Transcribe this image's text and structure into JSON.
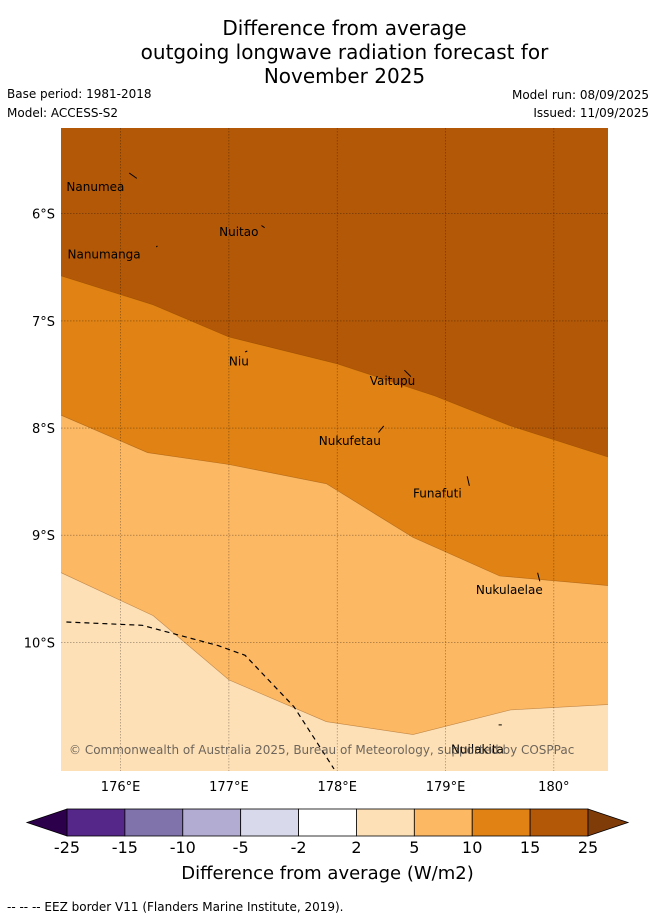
{
  "title": {
    "line1": "Difference from average",
    "line2": "outgoing longwave radiation forecast for",
    "line3": "November 2025"
  },
  "meta": {
    "base_period": "Base period: 1981-2018",
    "model": "Model: ACCESS-S2",
    "model_run": "Model run: 08/09/2025",
    "issued": "Issued: 11/09/2025"
  },
  "map": {
    "type": "filled-contour",
    "xlim": [
      175.45,
      180.5
    ],
    "ylim": [
      -11.2,
      -5.2
    ],
    "x_ticks": [
      {
        "value": 176,
        "label": "176°E"
      },
      {
        "value": 177,
        "label": "177°E"
      },
      {
        "value": 178,
        "label": "178°E"
      },
      {
        "value": 179,
        "label": "179°E"
      },
      {
        "value": 180,
        "label": "180°"
      }
    ],
    "y_ticks": [
      {
        "value": -6,
        "label": "6°S"
      },
      {
        "value": -7,
        "label": "7°S"
      },
      {
        "value": -8,
        "label": "8°S"
      },
      {
        "value": -9,
        "label": "9°S"
      },
      {
        "value": -10,
        "label": "10°S"
      }
    ],
    "grid": true,
    "bands": [
      {
        "range": "15 to 25",
        "color": "#b35806"
      },
      {
        "range": "10 to 15",
        "color": "#e08214"
      },
      {
        "range": "5 to 10",
        "color": "#fdb863"
      },
      {
        "range": "2 to 5",
        "color": "#fee0b6"
      }
    ],
    "boundaries": [
      {
        "between": "25/15",
        "points": [
          [
            175.45,
            -6.58
          ],
          [
            176.3,
            -6.85
          ],
          [
            177.0,
            -7.15
          ],
          [
            178.0,
            -7.4
          ],
          [
            178.9,
            -7.7
          ],
          [
            179.6,
            -7.98
          ],
          [
            180.5,
            -8.27
          ]
        ]
      },
      {
        "between": "15/10",
        "points": [
          [
            175.45,
            -7.88
          ],
          [
            176.25,
            -8.23
          ],
          [
            177.0,
            -8.34
          ],
          [
            177.9,
            -8.52
          ],
          [
            178.7,
            -9.02
          ],
          [
            179.5,
            -9.38
          ],
          [
            180.5,
            -9.47
          ]
        ]
      },
      {
        "between": "10/5",
        "points": [
          [
            175.45,
            -9.35
          ],
          [
            176.3,
            -9.75
          ],
          [
            177.0,
            -10.35
          ],
          [
            177.9,
            -10.74
          ],
          [
            178.7,
            -10.86
          ],
          [
            179.6,
            -10.63
          ],
          [
            180.5,
            -10.58
          ]
        ]
      }
    ],
    "places": [
      {
        "name": "Nanumea",
        "lon": 175.5,
        "lat": -5.75,
        "mark": [
          [
            176.08,
            -5.62
          ],
          [
            176.15,
            -5.67
          ]
        ]
      },
      {
        "name": "Nuitao",
        "lon": 176.91,
        "lat": -6.17,
        "mark": [
          [
            177.3,
            -6.11
          ],
          [
            177.33,
            -6.13
          ]
        ]
      },
      {
        "name": "Nanumanga",
        "lon": 175.51,
        "lat": -6.38,
        "mark": [
          [
            176.33,
            -6.31
          ],
          [
            176.34,
            -6.3
          ]
        ]
      },
      {
        "name": "Niu",
        "lon": 177.0,
        "lat": -7.38,
        "mark": [
          [
            177.15,
            -7.29
          ],
          [
            177.17,
            -7.28
          ]
        ]
      },
      {
        "name": "Vaitupu",
        "lon": 178.3,
        "lat": -7.56,
        "mark": [
          [
            178.62,
            -7.46
          ],
          [
            178.68,
            -7.52
          ]
        ]
      },
      {
        "name": "Nukufetau",
        "lon": 177.83,
        "lat": -8.12,
        "mark": [
          [
            178.38,
            -8.04
          ],
          [
            178.43,
            -7.98
          ]
        ]
      },
      {
        "name": "Funafuti",
        "lon": 178.7,
        "lat": -8.61,
        "mark": [
          [
            179.2,
            -8.45
          ],
          [
            179.22,
            -8.54
          ]
        ]
      },
      {
        "name": "Nukulaelae",
        "lon": 179.28,
        "lat": -9.51,
        "mark": [
          [
            179.85,
            -9.35
          ],
          [
            179.87,
            -9.43
          ]
        ]
      },
      {
        "name": "Nuilakita",
        "lon": 179.05,
        "lat": -11.0,
        "mark": [
          [
            179.49,
            -10.77
          ],
          [
            179.52,
            -10.77
          ]
        ]
      }
    ],
    "eez_border": [
      [
        175.5,
        -9.81
      ],
      [
        176.2,
        -9.84
      ],
      [
        176.9,
        -10.03
      ],
      [
        177.15,
        -10.12
      ],
      [
        177.6,
        -10.6
      ],
      [
        177.97,
        -11.18
      ]
    ],
    "copyright": "© Commonwealth of Australia 2025, Bureau of Meteorology, supported by COSPPac"
  },
  "colorbar": {
    "title": "Difference from average (W/m2)",
    "labels": [
      "-25",
      "-15",
      "-10",
      "-5",
      "-2",
      "2",
      "5",
      "10",
      "15",
      "25"
    ],
    "colors": [
      "#542788",
      "#8073ac",
      "#b2abd2",
      "#d8daeb",
      "#ffffff",
      "#fee0b6",
      "#fdb863",
      "#e08214",
      "#b35806"
    ],
    "extend_low_color": "#2d004b",
    "extend_high_color": "#7f3b08"
  },
  "footer": {
    "legend": "-- -- -- EEZ border V11 (Flanders Marine Institute, 2019)."
  }
}
